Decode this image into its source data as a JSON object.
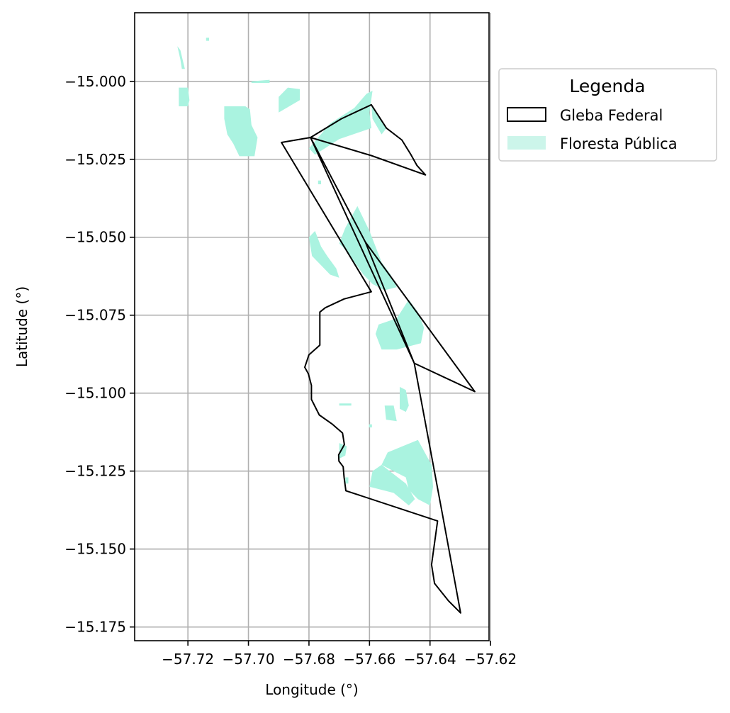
{
  "chart_data": {
    "type": "map",
    "xlabel": "Longitude (°)",
    "ylabel": "Latitude (°)",
    "xlim": [
      -57.7376,
      -57.6205
    ],
    "ylim": [
      -15.1794,
      -14.978
    ],
    "xticks": [
      -57.72,
      -57.7,
      -57.68,
      -57.66,
      -57.64,
      -57.62
    ],
    "xtick_labels": [
      "−57.72",
      "−57.70",
      "−57.68",
      "−57.66",
      "−57.64",
      "−57.62"
    ],
    "yticks": [
      -15.0,
      -15.025,
      -15.05,
      -15.075,
      -15.1,
      -15.125,
      -15.15,
      -15.175
    ],
    "ytick_labels": [
      "−15.000",
      "−15.025",
      "−15.050",
      "−15.075",
      "−15.100",
      "−15.125",
      "−15.150",
      "−15.175"
    ],
    "grid": true,
    "legend": {
      "title": "Legenda",
      "placement": "outside-upper-right",
      "entries": [
        {
          "label": "Gleba Federal",
          "style": "outline",
          "color": "#000000"
        },
        {
          "label": "Floresta Pública",
          "style": "fill",
          "color": "#ccf5ea"
        }
      ]
    },
    "colors": {
      "forest": "#aaf3e0",
      "boundary": "#000000",
      "grid": "#b0b0b0"
    },
    "gleba_federal": [
      [
        -57.6594,
        -15.0075
      ],
      [
        -57.6544,
        -15.015
      ],
      [
        -57.6493,
        -15.0188
      ],
      [
        -57.6463,
        -15.0235
      ],
      [
        -57.6443,
        -15.027
      ],
      [
        -57.6415,
        -15.03
      ],
      [
        -57.6594,
        -15.0238
      ],
      [
        -57.6795,
        -15.018
      ],
      [
        -57.6452,
        -15.0904
      ],
      [
        -57.6252,
        -15.0995
      ],
      [
        -57.6614,
        -15.0515
      ],
      [
        -57.6795,
        -15.018
      ],
      [
        -57.6891,
        -15.0196
      ],
      [
        -57.6594,
        -15.0675
      ],
      [
        -57.6684,
        -15.0698
      ],
      [
        -57.6746,
        -15.0726
      ],
      [
        -57.6764,
        -15.074
      ],
      [
        -57.6764,
        -15.0846
      ],
      [
        -57.68,
        -15.0877
      ],
      [
        -57.6814,
        -15.0917
      ],
      [
        -57.6802,
        -15.0938
      ],
      [
        -57.6792,
        -15.0975
      ],
      [
        -57.6792,
        -15.102
      ],
      [
        -57.6766,
        -15.107
      ],
      [
        -57.6722,
        -15.11
      ],
      [
        -57.6689,
        -15.1128
      ],
      [
        -57.6683,
        -15.1165
      ],
      [
        -57.6702,
        -15.1198
      ],
      [
        -57.6701,
        -15.1218
      ],
      [
        -57.6687,
        -15.1236
      ],
      [
        -57.6684,
        -15.127
      ],
      [
        -57.6678,
        -15.1313
      ],
      [
        -57.6375,
        -15.141
      ],
      [
        -57.6395,
        -15.155
      ],
      [
        -57.6385,
        -15.161
      ],
      [
        -57.634,
        -15.1665
      ],
      [
        -57.6299,
        -15.1705
      ],
      [
        -57.6358,
        -15.1394
      ],
      [
        -57.6452,
        -15.0904
      ],
      [
        -57.6614,
        -15.0515
      ],
      [
        -57.6795,
        -15.018
      ],
      [
        -57.6693,
        -15.012
      ],
      [
        -57.6594,
        -15.0075
      ]
    ],
    "floresta_publica": [
      [
        [
          -57.7235,
          -14.9887
        ],
        [
          -57.7225,
          -14.99
        ],
        [
          -57.7215,
          -14.994
        ],
        [
          -57.721,
          -14.996
        ],
        [
          -57.722,
          -14.996
        ],
        [
          -57.7225,
          -14.993
        ],
        [
          -57.7232,
          -14.99
        ]
      ],
      [
        [
          -57.714,
          -14.986
        ],
        [
          -57.713,
          -14.986
        ],
        [
          -57.713,
          -14.987
        ],
        [
          -57.714,
          -14.987
        ]
      ],
      [
        [
          -57.723,
          -15.002
        ],
        [
          -57.72,
          -15.002
        ],
        [
          -57.7195,
          -15.006
        ],
        [
          -57.72,
          -15.008
        ],
        [
          -57.723,
          -15.008
        ]
      ],
      [
        [
          -57.699,
          -15.0
        ],
        [
          -57.693,
          -14.9995
        ],
        [
          -57.693,
          -15.0005
        ],
        [
          -57.699,
          -15.0005
        ]
      ],
      [
        [
          -57.683,
          -15.0025
        ],
        [
          -57.687,
          -15.002
        ],
        [
          -57.69,
          -15.005
        ],
        [
          -57.69,
          -15.01
        ],
        [
          -57.683,
          -15.006
        ]
      ],
      [
        [
          -57.708,
          -15.008
        ],
        [
          -57.701,
          -15.008
        ],
        [
          -57.6995,
          -15.009
        ],
        [
          -57.699,
          -15.014
        ],
        [
          -57.697,
          -15.018
        ],
        [
          -57.698,
          -15.024
        ],
        [
          -57.703,
          -15.024
        ],
        [
          -57.705,
          -15.02
        ],
        [
          -57.707,
          -15.017
        ],
        [
          -57.708,
          -15.012
        ]
      ],
      [
        [
          -57.659,
          -15.003
        ],
        [
          -57.66,
          -15.01
        ],
        [
          -57.6594,
          -15.015
        ],
        [
          -57.67,
          -15.0185
        ],
        [
          -57.678,
          -15.0235
        ],
        [
          -57.68,
          -15.0215
        ],
        [
          -57.673,
          -15.0135
        ],
        [
          -57.665,
          -15.0085
        ],
        [
          -57.661,
          -15.004
        ]
      ],
      [
        [
          -57.6594,
          -15.0075
        ],
        [
          -57.6544,
          -15.015
        ],
        [
          -57.656,
          -15.017
        ],
        [
          -57.659,
          -15.012
        ]
      ],
      [
        [
          -57.678,
          -15.048
        ],
        [
          -57.676,
          -15.053
        ],
        [
          -57.674,
          -15.056
        ],
        [
          -57.671,
          -15.06
        ],
        [
          -57.67,
          -15.063
        ],
        [
          -57.673,
          -15.062
        ],
        [
          -57.676,
          -15.059
        ],
        [
          -57.679,
          -15.056
        ],
        [
          -57.68,
          -15.05
        ]
      ],
      [
        [
          -57.664,
          -15.04
        ],
        [
          -57.668,
          -15.047
        ],
        [
          -57.67,
          -15.052
        ],
        [
          -57.668,
          -15.054
        ],
        [
          -57.665,
          -15.058
        ],
        [
          -57.662,
          -15.062
        ],
        [
          -57.659,
          -15.065
        ],
        [
          -57.655,
          -15.067
        ],
        [
          -57.651,
          -15.066
        ],
        [
          -57.653,
          -15.062
        ],
        [
          -57.656,
          -15.058
        ],
        [
          -57.658,
          -15.053
        ],
        [
          -57.66,
          -15.048
        ]
      ],
      [
        [
          -57.647,
          -15.07
        ],
        [
          -57.644,
          -15.074
        ],
        [
          -57.642,
          -15.079
        ],
        [
          -57.643,
          -15.084
        ],
        [
          -57.647,
          -15.085
        ],
        [
          -57.651,
          -15.086
        ],
        [
          -57.656,
          -15.086
        ],
        [
          -57.658,
          -15.081
        ],
        [
          -57.657,
          -15.078
        ],
        [
          -57.651,
          -15.076
        ],
        [
          -57.649,
          -15.073
        ]
      ],
      [
        [
          -57.65,
          -15.098
        ],
        [
          -57.648,
          -15.099
        ],
        [
          -57.647,
          -15.104
        ],
        [
          -57.648,
          -15.106
        ],
        [
          -57.65,
          -15.105
        ]
      ],
      [
        [
          -57.655,
          -15.104
        ],
        [
          -57.652,
          -15.104
        ],
        [
          -57.651,
          -15.109
        ],
        [
          -57.6545,
          -15.1085
        ]
      ],
      [
        [
          -57.67,
          -15.1033
        ],
        [
          -57.666,
          -15.1033
        ],
        [
          -57.666,
          -15.104
        ],
        [
          -57.67,
          -15.104
        ]
      ],
      [
        [
          -57.6602,
          -15.11
        ],
        [
          -57.6592,
          -15.11
        ],
        [
          -57.6592,
          -15.111
        ],
        [
          -57.6602,
          -15.111
        ]
      ],
      [
        [
          -57.644,
          -15.115
        ],
        [
          -57.649,
          -15.117
        ],
        [
          -57.654,
          -15.119
        ],
        [
          -57.656,
          -15.123
        ],
        [
          -57.652,
          -15.125
        ],
        [
          -57.648,
          -15.127
        ],
        [
          -57.647,
          -15.131
        ],
        [
          -57.644,
          -15.134
        ],
        [
          -57.64,
          -15.136
        ],
        [
          -57.639,
          -15.13
        ],
        [
          -57.6395,
          -15.123
        ]
      ],
      [
        [
          -57.656,
          -15.123
        ],
        [
          -57.659,
          -15.125
        ],
        [
          -57.66,
          -15.13
        ],
        [
          -57.652,
          -15.132
        ],
        [
          -57.647,
          -15.136
        ],
        [
          -57.645,
          -15.134
        ],
        [
          -57.648,
          -15.129
        ]
      ],
      [
        [
          -57.67,
          -15.116
        ],
        [
          -57.6675,
          -15.117
        ],
        [
          -57.668,
          -15.12
        ],
        [
          -57.67,
          -15.121
        ]
      ],
      [
        [
          -57.668,
          -15.127
        ],
        [
          -57.667,
          -15.127
        ],
        [
          -57.667,
          -15.129
        ],
        [
          -57.668,
          -15.129
        ]
      ],
      [
        [
          -57.677,
          -15.0318
        ],
        [
          -57.676,
          -15.0318
        ],
        [
          -57.676,
          -15.033
        ],
        [
          -57.677,
          -15.033
        ]
      ]
    ]
  }
}
